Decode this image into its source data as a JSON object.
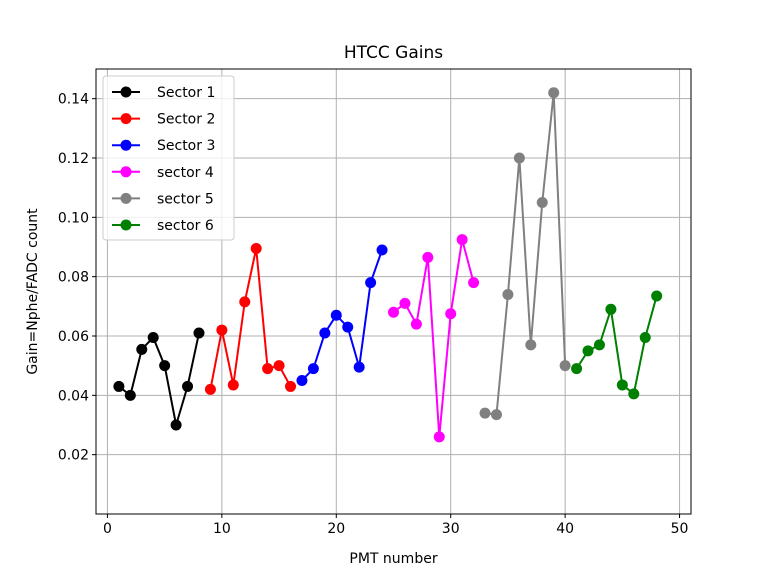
{
  "chart_data": {
    "type": "line",
    "title": "HTCC Gains",
    "xlabel": "PMT number",
    "ylabel": "Gain=Nphe/FADC count",
    "xlim": [
      -1,
      51
    ],
    "ylim": [
      0.0,
      0.15
    ],
    "xticks": [
      0,
      10,
      20,
      30,
      40,
      50
    ],
    "yticks": [
      0.02,
      0.04,
      0.06,
      0.08,
      0.1,
      0.12,
      0.14
    ],
    "xtick_labels": [
      "0",
      "10",
      "20",
      "30",
      "40",
      "50"
    ],
    "ytick_labels": [
      "0.02",
      "0.04",
      "0.06",
      "0.08",
      "0.10",
      "0.12",
      "0.14"
    ],
    "grid": true,
    "legend_position": "top-left",
    "series": [
      {
        "name": "Sector 1",
        "color": "#000000",
        "x": [
          1,
          2,
          3,
          4,
          5,
          6,
          7,
          8
        ],
        "y": [
          0.043,
          0.04,
          0.0555,
          0.0595,
          0.05,
          0.03,
          0.043,
          0.061
        ]
      },
      {
        "name": "Sector 2",
        "color": "#ff0000",
        "x": [
          9,
          10,
          11,
          12,
          13,
          14,
          15,
          16
        ],
        "y": [
          0.042,
          0.062,
          0.0435,
          0.0715,
          0.0895,
          0.049,
          0.05,
          0.043
        ]
      },
      {
        "name": "Sector 3",
        "color": "#0000ff",
        "x": [
          17,
          18,
          19,
          20,
          21,
          22,
          23,
          24
        ],
        "y": [
          0.045,
          0.049,
          0.061,
          0.067,
          0.063,
          0.0495,
          0.078,
          0.089
        ]
      },
      {
        "name": "sector 4",
        "color": "#ff00ff",
        "x": [
          25,
          26,
          27,
          28,
          29,
          30,
          31,
          32
        ],
        "y": [
          0.068,
          0.071,
          0.064,
          0.0865,
          0.026,
          0.0675,
          0.0925,
          0.078
        ]
      },
      {
        "name": "sector 5",
        "color": "#808080",
        "x": [
          33,
          34,
          35,
          36,
          37,
          38,
          39,
          40
        ],
        "y": [
          0.034,
          0.0335,
          0.074,
          0.12,
          0.057,
          0.105,
          0.142,
          0.05
        ]
      },
      {
        "name": "sector 6",
        "color": "#008000",
        "x": [
          41,
          42,
          43,
          44,
          45,
          46,
          47,
          48
        ],
        "y": [
          0.049,
          0.055,
          0.057,
          0.069,
          0.0435,
          0.0405,
          0.0595,
          0.0735
        ]
      }
    ]
  }
}
